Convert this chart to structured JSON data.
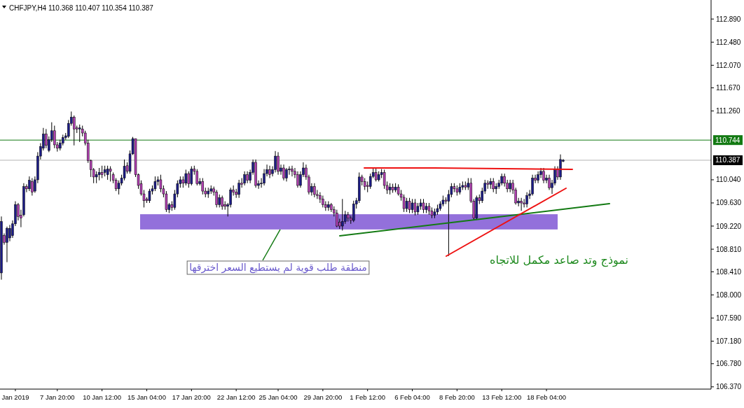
{
  "chart_data": {
    "type": "candlestick",
    "title": "CHFJPY,H4  110.368 110.407 110.354 110.387",
    "categories": [
      null,
      null,
      null,
      null,
      null,
      "Jan 2019",
      null,
      null,
      null,
      null,
      null,
      null,
      null,
      null,
      null,
      null,
      null,
      null,
      null,
      null,
      "7 Jan 20:00",
      null,
      null,
      null,
      null,
      null,
      null,
      null,
      null,
      null,
      null,
      null,
      null,
      null,
      null,
      null,
      "10 Jan 12:00",
      null,
      null,
      null,
      null,
      null,
      null,
      null,
      null,
      null,
      null,
      null,
      null,
      null,
      null,
      null,
      "15 Jan 04:00",
      null,
      null,
      null,
      null,
      null,
      null,
      null,
      null,
      null,
      null,
      null,
      null,
      null,
      null,
      null,
      "17 Jan 20:00",
      null,
      null,
      null,
      null,
      null,
      null,
      null,
      null,
      null,
      null,
      null,
      null,
      null,
      null,
      null,
      "22 Jan 12:00",
      null,
      null,
      null,
      null,
      null,
      null,
      null,
      null,
      null,
      null,
      null,
      null,
      null,
      null,
      "25 Jan 04:00",
      null,
      null,
      null,
      null,
      null,
      null,
      null,
      null,
      null,
      null,
      null,
      null,
      null,
      null,
      null,
      "29 Jan 20:00",
      null,
      null,
      null,
      null,
      null,
      null,
      null,
      null,
      null,
      null,
      null,
      null,
      null,
      null,
      null,
      "1 Feb 12:00",
      null,
      null,
      null,
      null,
      null,
      null,
      null,
      null,
      null,
      null,
      null,
      null,
      null,
      null,
      null,
      "6 Feb 04:00",
      null,
      null,
      null,
      null,
      null,
      null,
      null,
      null,
      null,
      null,
      null,
      null,
      null,
      null,
      null,
      "8 Feb 20:00",
      null,
      null,
      null,
      null,
      null,
      null,
      null,
      null,
      null,
      null,
      null,
      null,
      null,
      null,
      null,
      "13 Feb 12:00",
      null,
      null,
      null,
      null,
      null,
      null,
      null,
      null,
      null,
      null,
      null,
      null,
      null,
      null,
      null,
      "18 Feb 04:00",
      null,
      null,
      null,
      null,
      null,
      null,
      null,
      null,
      null,
      null,
      null,
      null,
      null,
      null,
      null,
      null,
      null,
      null,
      null,
      null,
      null,
      null,
      null,
      null,
      null,
      null,
      null,
      null,
      null,
      null,
      null,
      null,
      null,
      null,
      null,
      null,
      null,
      null,
      null,
      null,
      null,
      null,
      null,
      null,
      null,
      null,
      null,
      null,
      null,
      null,
      null,
      null,
      null,
      null,
      null,
      null,
      null,
      null
    ],
    "ohlc": [
      [
        108.39,
        109.39,
        108.27,
        109.3
      ],
      [
        109.05,
        109.09,
        108.89,
        108.93
      ],
      [
        108.93,
        109.21,
        108.58,
        109.18
      ],
      [
        109.01,
        109.24,
        108.95,
        109.18
      ],
      [
        109.05,
        109.32,
        109.01,
        109.26
      ],
      [
        109.26,
        109.66,
        109.22,
        109.6
      ],
      [
        109.6,
        109.63,
        109.32,
        109.39
      ],
      [
        109.41,
        109.51,
        109.2,
        109.36
      ],
      [
        109.42,
        109.98,
        109.39,
        109.92
      ],
      [
        109.92,
        109.96,
        109.82,
        109.88
      ],
      [
        109.88,
        110.1,
        109.84,
        110.03
      ],
      [
        110.01,
        110.07,
        109.76,
        109.82
      ],
      [
        109.84,
        110.1,
        109.81,
        110.04
      ],
      [
        110.04,
        110.53,
        109.98,
        110.46
      ],
      [
        110.46,
        110.69,
        110.4,
        110.63
      ],
      [
        110.6,
        110.96,
        110.56,
        110.85
      ],
      [
        110.85,
        110.94,
        110.6,
        110.65
      ],
      [
        110.56,
        110.81,
        110.53,
        110.75
      ],
      [
        110.75,
        111.06,
        110.71,
        110.91
      ],
      [
        110.91,
        111.0,
        110.6,
        110.66
      ],
      [
        110.66,
        110.71,
        110.54,
        110.6
      ],
      [
        110.6,
        110.75,
        110.56,
        110.69
      ],
      [
        110.69,
        110.84,
        110.65,
        110.79
      ],
      [
        110.79,
        110.87,
        110.75,
        110.82
      ],
      [
        110.81,
        111.1,
        110.78,
        111.04
      ],
      [
        111.04,
        111.25,
        111.0,
        111.15
      ],
      [
        111.15,
        111.18,
        110.65,
        110.94
      ],
      [
        110.96,
        111.0,
        110.87,
        110.94
      ],
      [
        110.94,
        111.02,
        110.71,
        110.96
      ],
      [
        110.94,
        111.0,
        110.81,
        110.87
      ],
      [
        110.87,
        110.91,
        110.65,
        110.69
      ],
      [
        110.69,
        110.75,
        110.34,
        110.38
      ],
      [
        110.38,
        110.4,
        110.09,
        110.22
      ],
      [
        110.22,
        110.25,
        109.98,
        110.09
      ],
      [
        110.09,
        110.19,
        109.98,
        110.13
      ],
      [
        110.13,
        110.25,
        110.03,
        110.17
      ],
      [
        110.17,
        110.29,
        110.07,
        110.13
      ],
      [
        110.17,
        110.29,
        110.1,
        110.22
      ],
      [
        110.13,
        110.29,
        110.04,
        110.23
      ],
      [
        110.23,
        110.28,
        110.01,
        110.19
      ],
      [
        110.13,
        110.17,
        109.98,
        110.03
      ],
      [
        110.03,
        110.07,
        109.84,
        109.88
      ],
      [
        109.88,
        110.03,
        109.78,
        109.98
      ],
      [
        109.98,
        110.13,
        109.94,
        110.07
      ],
      [
        110.07,
        110.4,
        110.03,
        110.28
      ],
      [
        110.29,
        110.35,
        110.15,
        110.19
      ],
      [
        110.19,
        110.56,
        110.15,
        110.5
      ],
      [
        110.5,
        110.8,
        110.48,
        110.77
      ],
      [
        110.77,
        110.77,
        110.09,
        110.13
      ],
      [
        110.13,
        110.15,
        109.88,
        109.94
      ],
      [
        109.97,
        110.03,
        109.76,
        109.79
      ],
      [
        109.79,
        109.86,
        109.55,
        109.67
      ],
      [
        109.7,
        109.73,
        109.63,
        109.67
      ],
      [
        109.67,
        109.88,
        109.63,
        109.84
      ],
      [
        109.84,
        109.94,
        109.78,
        109.88
      ],
      [
        109.88,
        110.1,
        109.84,
        110.01
      ],
      [
        110.01,
        110.1,
        109.94,
        110.04
      ],
      [
        110.04,
        110.13,
        109.82,
        109.88
      ],
      [
        109.88,
        109.94,
        109.73,
        109.79
      ],
      [
        109.79,
        109.84,
        109.47,
        109.51
      ],
      [
        109.51,
        109.63,
        109.45,
        109.6
      ],
      [
        109.6,
        109.66,
        109.49,
        109.55
      ],
      [
        109.55,
        109.86,
        109.51,
        109.79
      ],
      [
        109.79,
        110.03,
        109.73,
        109.97
      ],
      [
        109.97,
        110.1,
        109.9,
        110.04
      ],
      [
        110.04,
        110.1,
        109.9,
        109.98
      ],
      [
        109.98,
        110.22,
        109.94,
        110.15
      ],
      [
        110.15,
        110.19,
        109.9,
        109.97
      ],
      [
        109.97,
        110.28,
        109.94,
        110.23
      ],
      [
        110.23,
        110.29,
        110.13,
        110.19
      ],
      [
        110.19,
        110.23,
        109.94,
        109.97
      ],
      [
        109.97,
        110.07,
        109.94,
        110.01
      ],
      [
        110.01,
        110.07,
        109.78,
        109.84
      ],
      [
        109.84,
        109.9,
        109.73,
        109.79
      ],
      [
        109.79,
        109.9,
        109.72,
        109.84
      ],
      [
        109.84,
        109.94,
        109.79,
        109.88
      ],
      [
        109.88,
        109.92,
        109.76,
        109.82
      ],
      [
        109.82,
        109.86,
        109.55,
        109.6
      ],
      [
        109.6,
        109.78,
        109.55,
        109.72
      ],
      [
        109.72,
        109.76,
        109.51,
        109.57
      ],
      [
        109.6,
        109.66,
        109.51,
        109.57
      ],
      [
        109.57,
        109.63,
        109.39,
        109.6
      ],
      [
        109.6,
        109.9,
        109.55,
        109.86
      ],
      [
        109.86,
        109.94,
        109.76,
        109.82
      ],
      [
        109.82,
        109.88,
        109.72,
        109.78
      ],
      [
        109.78,
        110.04,
        109.72,
        109.98
      ],
      [
        109.98,
        110.07,
        109.9,
        109.96
      ],
      [
        109.98,
        110.19,
        109.94,
        110.13
      ],
      [
        110.13,
        110.19,
        109.98,
        110.03
      ],
      [
        110.03,
        110.22,
        109.98,
        110.17
      ],
      [
        110.17,
        110.4,
        110.13,
        110.35
      ],
      [
        110.35,
        110.4,
        109.9,
        109.94
      ],
      [
        109.94,
        110.03,
        109.88,
        109.97
      ],
      [
        109.97,
        110.07,
        109.9,
        109.98
      ],
      [
        109.98,
        110.23,
        109.94,
        110.15
      ],
      [
        110.15,
        110.31,
        110.1,
        110.22
      ],
      [
        110.22,
        110.29,
        110.07,
        110.13
      ],
      [
        110.15,
        110.28,
        110.1,
        110.22
      ],
      [
        110.22,
        110.55,
        110.17,
        110.46
      ],
      [
        110.46,
        110.53,
        110.13,
        110.19
      ],
      [
        110.19,
        110.31,
        110.13,
        110.25
      ],
      [
        110.25,
        110.31,
        110.03,
        110.07
      ],
      [
        110.07,
        110.25,
        110.01,
        110.22
      ],
      [
        110.22,
        110.28,
        110.13,
        110.23
      ],
      [
        110.23,
        110.29,
        110.1,
        110.19
      ],
      [
        110.19,
        110.25,
        110.07,
        110.13
      ],
      [
        110.13,
        110.19,
        109.9,
        109.94
      ],
      [
        109.94,
        110.19,
        109.9,
        110.13
      ],
      [
        110.13,
        110.35,
        110.09,
        110.25
      ],
      [
        110.25,
        110.31,
        110.04,
        110.09
      ],
      [
        110.09,
        110.13,
        109.78,
        109.82
      ],
      [
        109.82,
        109.98,
        109.76,
        109.92
      ],
      [
        109.92,
        109.98,
        109.73,
        109.78
      ],
      [
        109.78,
        109.86,
        109.7,
        109.76
      ],
      [
        109.76,
        109.82,
        109.63,
        109.7
      ],
      [
        109.7,
        109.76,
        109.55,
        109.6
      ],
      [
        109.6,
        109.66,
        109.49,
        109.55
      ],
      [
        109.55,
        109.66,
        109.49,
        109.6
      ],
      [
        109.6,
        109.63,
        109.47,
        109.51
      ],
      [
        109.51,
        109.57,
        109.39,
        109.45
      ],
      [
        109.45,
        109.51,
        109.2,
        109.22
      ],
      [
        109.29,
        109.35,
        109.17,
        109.22
      ],
      [
        109.22,
        109.7,
        109.14,
        109.3
      ],
      [
        109.3,
        109.49,
        109.26,
        109.42
      ],
      [
        109.42,
        109.47,
        109.3,
        109.36
      ],
      [
        109.36,
        109.41,
        109.26,
        109.32
      ],
      [
        109.32,
        109.67,
        109.29,
        109.61
      ],
      [
        109.61,
        109.72,
        109.53,
        109.67
      ],
      [
        109.67,
        110.17,
        109.63,
        110.09
      ],
      [
        110.09,
        110.13,
        109.94,
        110.01
      ],
      [
        110.01,
        110.07,
        109.86,
        109.92
      ],
      [
        109.94,
        110.01,
        109.82,
        109.92
      ],
      [
        109.92,
        110.15,
        109.88,
        110.1
      ],
      [
        110.1,
        110.25,
        110.07,
        110.17
      ],
      [
        110.17,
        110.25,
        110.01,
        110.04
      ],
      [
        110.04,
        110.19,
        110.01,
        110.13
      ],
      [
        110.13,
        110.23,
        110.07,
        110.17
      ],
      [
        110.17,
        110.22,
        109.88,
        109.94
      ],
      [
        109.94,
        110.01,
        109.79,
        109.86
      ],
      [
        109.86,
        109.98,
        109.78,
        109.91
      ],
      [
        109.91,
        109.97,
        109.81,
        109.86
      ],
      [
        109.86,
        109.98,
        109.82,
        109.91
      ],
      [
        109.91,
        109.96,
        109.76,
        109.79
      ],
      [
        109.79,
        109.86,
        109.67,
        109.73
      ],
      [
        109.73,
        109.78,
        109.47,
        109.53
      ],
      [
        109.53,
        109.72,
        109.47,
        109.66
      ],
      [
        109.66,
        109.72,
        109.45,
        109.51
      ],
      [
        109.51,
        109.7,
        109.45,
        109.63
      ],
      [
        109.63,
        109.7,
        109.41,
        109.47
      ],
      [
        109.47,
        109.63,
        109.42,
        109.57
      ],
      [
        109.57,
        109.7,
        109.51,
        109.63
      ],
      [
        109.63,
        109.7,
        109.45,
        109.51
      ],
      [
        109.51,
        109.63,
        109.45,
        109.57
      ],
      [
        109.57,
        109.63,
        109.42,
        109.49
      ],
      [
        109.49,
        109.55,
        109.36,
        109.41
      ],
      [
        109.41,
        109.53,
        109.36,
        109.47
      ],
      [
        109.47,
        109.6,
        109.42,
        109.53
      ],
      [
        109.53,
        109.66,
        109.49,
        109.61
      ],
      [
        109.61,
        109.76,
        109.57,
        109.68
      ],
      [
        109.68,
        109.73,
        109.61,
        109.66
      ],
      [
        109.66,
        109.86,
        108.69,
        109.78
      ],
      [
        109.78,
        109.98,
        109.73,
        109.92
      ],
      [
        109.92,
        109.98,
        109.82,
        109.88
      ],
      [
        109.88,
        109.94,
        109.76,
        109.82
      ],
      [
        109.82,
        109.98,
        109.78,
        109.91
      ],
      [
        109.91,
        110.01,
        109.86,
        109.94
      ],
      [
        109.94,
        110.01,
        109.86,
        109.91
      ],
      [
        109.91,
        110.07,
        109.86,
        109.98
      ],
      [
        109.98,
        110.07,
        109.63,
        109.66
      ],
      [
        109.66,
        109.7,
        109.33,
        109.36
      ],
      [
        109.36,
        109.76,
        109.33,
        109.72
      ],
      [
        109.72,
        109.78,
        109.61,
        109.67
      ],
      [
        109.67,
        109.9,
        109.63,
        109.84
      ],
      [
        109.84,
        110.04,
        109.79,
        109.98
      ],
      [
        109.98,
        110.03,
        109.88,
        109.96
      ],
      [
        109.96,
        110.07,
        109.88,
        110.01
      ],
      [
        110.01,
        110.07,
        109.82,
        109.88
      ],
      [
        109.88,
        109.98,
        109.79,
        109.92
      ],
      [
        109.92,
        110.04,
        109.88,
        109.98
      ],
      [
        109.98,
        110.15,
        109.94,
        110.1
      ],
      [
        110.1,
        110.15,
        109.92,
        109.98
      ],
      [
        109.98,
        110.04,
        109.82,
        109.88
      ],
      [
        109.88,
        110.04,
        109.82,
        109.98
      ],
      [
        109.98,
        110.04,
        109.79,
        109.86
      ],
      [
        109.86,
        109.9,
        109.6,
        109.63
      ],
      [
        109.63,
        109.72,
        109.57,
        109.66
      ],
      [
        109.66,
        109.72,
        109.49,
        109.63
      ],
      [
        109.63,
        109.7,
        109.55,
        109.61
      ],
      [
        109.61,
        109.82,
        109.55,
        109.76
      ],
      [
        109.76,
        109.86,
        109.7,
        109.79
      ],
      [
        109.79,
        110.13,
        109.76,
        110.07
      ],
      [
        110.07,
        110.13,
        109.98,
        110.03
      ],
      [
        110.03,
        110.19,
        109.98,
        110.13
      ],
      [
        110.13,
        110.25,
        110.07,
        110.19
      ],
      [
        110.19,
        110.25,
        109.98,
        110.03
      ],
      [
        110.03,
        110.13,
        109.98,
        110.07
      ],
      [
        110.07,
        110.13,
        109.86,
        109.9
      ],
      [
        109.9,
        110.04,
        109.79,
        109.98
      ],
      [
        109.98,
        110.28,
        109.94,
        110.22
      ],
      [
        110.22,
        110.28,
        110.04,
        110.09
      ],
      [
        110.09,
        110.49,
        110.04,
        110.4
      ],
      [
        110.368,
        110.407,
        110.354,
        110.387
      ],
      null,
      null,
      null,
      null,
      null,
      null,
      null,
      null,
      null,
      null,
      null,
      null,
      null,
      null,
      null,
      null,
      null,
      null,
      null,
      null,
      null,
      null,
      null,
      null,
      null,
      null,
      null,
      null,
      null,
      null,
      null,
      null,
      null,
      null,
      null,
      null,
      null,
      null,
      null,
      null,
      null,
      null,
      null,
      null,
      null,
      null,
      null,
      null,
      null,
      null,
      null,
      null
    ],
    "ylim": [
      106.33,
      113.19
    ],
    "yticks": [
      {
        "value": 112.89,
        "label": "112.890"
      },
      {
        "value": 112.48,
        "label": "112.480"
      },
      {
        "value": 112.07,
        "label": "112.070"
      },
      {
        "value": 111.67,
        "label": "111.670"
      },
      {
        "value": 111.26,
        "label": "111.260"
      },
      {
        "value": 110.04,
        "label": "110.040"
      },
      {
        "value": 109.63,
        "label": "109.630"
      },
      {
        "value": 109.22,
        "label": "109.220"
      },
      {
        "value": 108.81,
        "label": "108.810"
      },
      {
        "value": 108.41,
        "label": "108.410"
      },
      {
        "value": 108.0,
        "label": "108.000"
      },
      {
        "value": 107.59,
        "label": "107.590"
      },
      {
        "value": 107.18,
        "label": "107.180"
      },
      {
        "value": 106.78,
        "label": "106.780"
      },
      {
        "value": 106.37,
        "label": "106.370"
      }
    ],
    "ref_lines": [
      {
        "axis": "y",
        "value": 110.744,
        "label": "110.744",
        "color": "#137a13"
      },
      {
        "axis": "y",
        "value": 110.387,
        "label": "110.387",
        "color": "#b4b4b4"
      }
    ],
    "bands": [
      {
        "axis": "y",
        "from": 109.16,
        "to": 109.43,
        "color": "#9370db"
      }
    ],
    "annotations": [
      {
        "text": "منطقة طلب قوية لم يستطيع السعر اخترقها",
        "y": 109.16
      },
      "نموذج وتد  صاعد  مكمل للاتجاه"
    ]
  }
}
